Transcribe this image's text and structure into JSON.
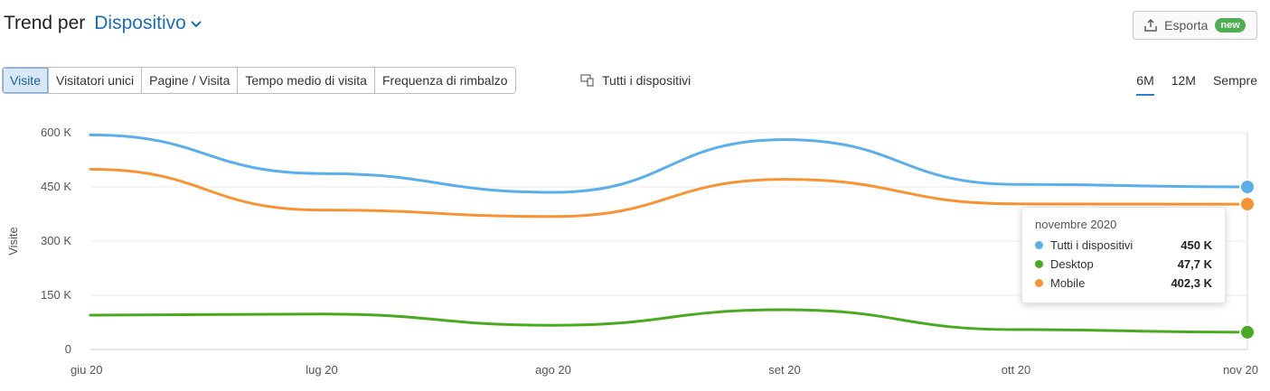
{
  "header": {
    "title_prefix": "Trend per",
    "dimension": "Dispositivo",
    "export_label": "Esporta",
    "export_badge": "new"
  },
  "tabs": [
    {
      "label": "Visite",
      "active": true
    },
    {
      "label": "Visitatori unici",
      "active": false
    },
    {
      "label": "Pagine / Visita",
      "active": false
    },
    {
      "label": "Tempo medio di visita",
      "active": false
    },
    {
      "label": "Frequenza di rimbalzo",
      "active": false
    }
  ],
  "device_filter": "Tutti i dispositivi",
  "periods": [
    {
      "label": "6M",
      "active": true
    },
    {
      "label": "12M",
      "active": false
    },
    {
      "label": "Sempre",
      "active": false
    }
  ],
  "tooltip": {
    "date": "novembre 2020",
    "rows": [
      {
        "name": "Tutti i dispositivi",
        "value": "450 K",
        "color": "#5aaeea"
      },
      {
        "name": "Desktop",
        "value": "47,7 K",
        "color": "#4aaa1f"
      },
      {
        "name": "Mobile",
        "value": "402,3 K",
        "color": "#f79335"
      }
    ]
  },
  "chart_data": {
    "type": "line",
    "x": [
      "giu 20",
      "lug 20",
      "ago 20",
      "set 20",
      "ott 20",
      "nov 20"
    ],
    "ylabel": "Visite",
    "ylim": [
      0,
      600000
    ],
    "yticks": [
      0,
      150000,
      300000,
      450000,
      600000
    ],
    "ytick_labels": [
      "0",
      "150 K",
      "300 K",
      "450 K",
      "600 K"
    ],
    "grid": true,
    "series": [
      {
        "name": "Tutti i dispositivi",
        "color": "#5aaeea",
        "values": [
          594000,
          487000,
          435000,
          581000,
          457000,
          450000
        ]
      },
      {
        "name": "Desktop",
        "color": "#4aaa1f",
        "values": [
          95000,
          98000,
          67000,
          110000,
          55000,
          47700
        ]
      },
      {
        "name": "Mobile",
        "color": "#f79335",
        "values": [
          499000,
          386000,
          368000,
          471000,
          403000,
          402300
        ]
      }
    ]
  }
}
